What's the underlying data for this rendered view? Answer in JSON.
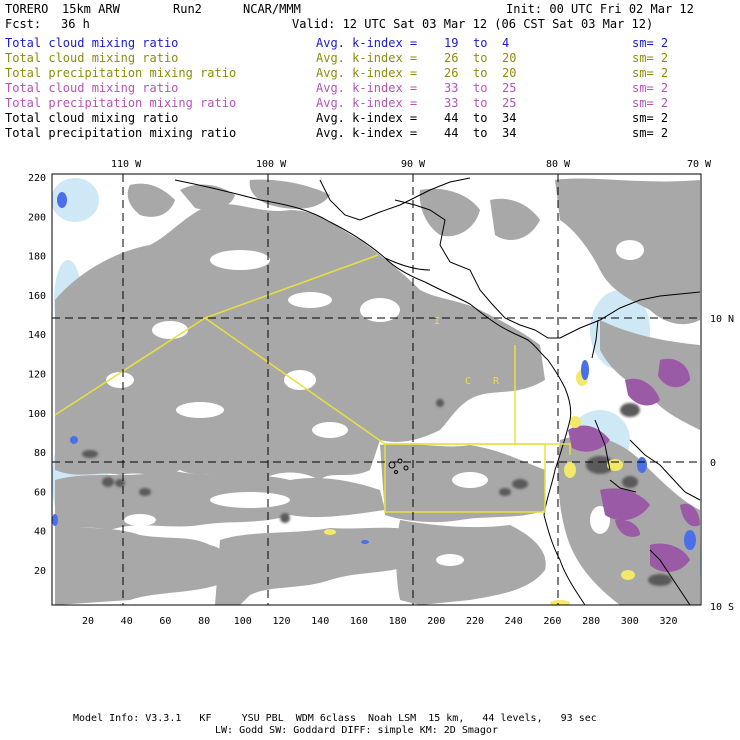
{
  "header": {
    "model": "TORERO",
    "resolution": "15km ARW",
    "run": "Run2",
    "org": "NCAR/MMM",
    "init": "Init: 00 UTC Fri 02 Mar 12",
    "fcst_label": "Fcst:",
    "fcst_hours": "36 h",
    "valid": "Valid: 12 UTC Sat 03 Mar 12 (06 CST Sat 03 Mar 12)"
  },
  "legend": [
    {
      "field": "Total cloud mixing ratio",
      "avg": "Avg. k-index =",
      "k1": "19",
      "to": "to",
      "k2": "4",
      "sm": "sm= 2",
      "color": "#1a1acc"
    },
    {
      "field": "Total cloud mixing ratio",
      "avg": "Avg. k-index =",
      "k1": "26",
      "to": "to",
      "k2": "20",
      "sm": "sm= 2",
      "color": "#8c8c10"
    },
    {
      "field": "Total precipitation mixing ratio",
      "avg": "Avg. k-index =",
      "k1": "26",
      "to": "to",
      "k2": "20",
      "sm": "sm= 2",
      "color": "#8c8c10"
    },
    {
      "field": "Total cloud mixing ratio",
      "avg": "Avg. k-index =",
      "k1": "33",
      "to": "to",
      "k2": "25",
      "sm": "sm= 2",
      "color": "#b455b4"
    },
    {
      "field": "Total precipitation mixing ratio",
      "avg": "Avg. k-index =",
      "k1": "33",
      "to": "to",
      "k2": "25",
      "sm": "sm= 2",
      "color": "#b455b4"
    },
    {
      "field": "Total cloud mixing ratio",
      "avg": "Avg. k-index =",
      "k1": "44",
      "to": "to",
      "k2": "34",
      "sm": "sm= 2",
      "color": "#000000"
    },
    {
      "field": "Total precipitation mixing ratio",
      "avg": "Avg. k-index =",
      "k1": "44",
      "to": "to",
      "k2": "34",
      "sm": "sm= 2",
      "color": "#000000"
    }
  ],
  "map": {
    "lon_labels": [
      "110 W",
      "100 W",
      "90 W",
      "80 W",
      "70 W"
    ],
    "lat_labels": [
      "10 N",
      "0",
      "10 S"
    ],
    "x_ticks": [
      "20",
      "40",
      "60",
      "80",
      "100",
      "120",
      "140",
      "160",
      "180",
      "200",
      "220",
      "240",
      "260",
      "280",
      "300",
      "320"
    ],
    "y_ticks": [
      "20",
      "40",
      "60",
      "80",
      "100",
      "120",
      "140",
      "160",
      "180",
      "200",
      "220"
    ],
    "stray_marks": [
      "I",
      "C",
      "R"
    ],
    "colors": {
      "cloud_gray": "#a8a8a8",
      "dark_gray": "#5a5a5a",
      "light_blue": "#cfe8f6",
      "mid_blue": "#4a6fe8",
      "purple": "#9b5aa6",
      "yellow": "#f2e86a",
      "yellow_line": "#e8e040",
      "grid": "#000000"
    }
  },
  "footer": {
    "line1": "Model Info: V3.3.1   KF     YSU PBL  WDM 6class  Noah LSM  15 km,   44 levels,   93 sec",
    "line2": "LW: Godd SW: Goddard DIFF: simple KM: 2D Smagor"
  }
}
